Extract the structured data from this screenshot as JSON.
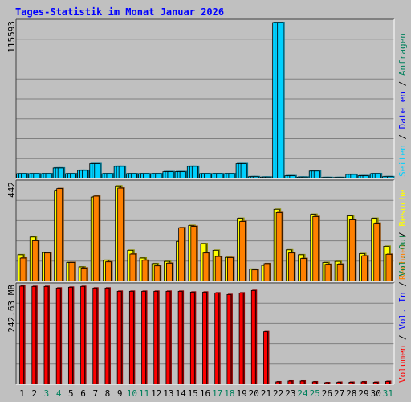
{
  "chart_data": {
    "type": "bar",
    "title": "Tages-Statistik im Monat Januar 2026",
    "categories": [
      "1",
      "2",
      "3",
      "4",
      "5",
      "6",
      "7",
      "8",
      "9",
      "10",
      "11",
      "12",
      "13",
      "14",
      "15",
      "16",
      "17",
      "18",
      "19",
      "20",
      "21",
      "22",
      "23",
      "24",
      "25",
      "26",
      "27",
      "28",
      "29",
      "30",
      "31"
    ],
    "weekend_days": [
      "3",
      "4",
      "10",
      "11",
      "17",
      "18",
      "24",
      "25",
      "31"
    ],
    "colors": {
      "title": "#0000ff",
      "background": "#c0c0c0",
      "plot_background": "#c0c0c0",
      "grid": "#808080",
      "tick_label": "#000000",
      "weekend_label": "#00805c",
      "anfragen": "#00805c",
      "dateien": "#0000ff",
      "seiten": "#00d0ff",
      "besuche": "#ffff00",
      "rechner": "#ff8000",
      "vol_in": "#0000ff",
      "vol_out": "#008040",
      "volumen": "#ff0000"
    },
    "panels": [
      {
        "id": "hits",
        "ymax_label": "115593",
        "ymax": 115593,
        "ylabel": [
          {
            "text": "Seiten",
            "color": "seiten"
          },
          {
            "text": "Dateien",
            "color": "dateien"
          },
          {
            "text": "Anfragen",
            "color": "anfragen"
          }
        ],
        "series": [
          {
            "name": "Anfragen",
            "color": "seiten",
            "values": [
              3550,
              3550,
              3550,
              7800,
              3550,
              6000,
              11000,
              3550,
              9000,
              3550,
              3550,
              3550,
              5000,
              5000,
              9000,
              3550,
              3550,
              3550,
              11000,
              1300,
              1000,
              115593,
              2000,
              1000,
              5500,
              700,
              700,
              3000,
              2000,
              3550,
              1300
            ]
          },
          {
            "name": "Dateien",
            "color": "seiten",
            "values": [
              3550,
              3550,
              3550,
              7800,
              3550,
              6000,
              11000,
              3550,
              9000,
              3550,
              3550,
              3550,
              5000,
              5000,
              9000,
              3550,
              3550,
              3550,
              11000,
              1300,
              1000,
              115593,
              2000,
              1000,
              5500,
              700,
              700,
              3000,
              2000,
              3550,
              1300
            ]
          },
          {
            "name": "Seiten",
            "color": "seiten",
            "values": [
              3550,
              3550,
              3550,
              7800,
              3550,
              6000,
              11000,
              3550,
              9000,
              3550,
              3550,
              3550,
              5000,
              5000,
              9000,
              3550,
              3550,
              3550,
              11000,
              1300,
              1000,
              115593,
              2000,
              1000,
              5500,
              700,
              700,
              3000,
              2000,
              3550,
              1300
            ]
          }
        ]
      },
      {
        "id": "visits",
        "ymax_label": "442",
        "ymax": 442,
        "ylabel": [
          {
            "text": "Rechner",
            "color": "rechner"
          },
          {
            "text": "Besuche",
            "color": "besuche"
          }
        ],
        "series": [
          {
            "name": "Besuche",
            "color": "besuche",
            "values": [
              120,
              200,
              130,
              410,
              85,
              65,
              380,
              95,
              430,
              140,
              105,
              80,
              90,
              180,
              252,
              170,
              140,
              108,
              284,
              55,
              72,
              325,
              142,
              120,
              302,
              85,
              90,
              295,
              125,
              284,
              158
            ]
          },
          {
            "name": "Rechner",
            "color": "rechner",
            "values": [
              105,
              183,
              128,
              418,
              85,
              60,
              384,
              88,
              420,
              123,
              95,
              70,
              82,
              242,
              248,
              128,
              112,
              107,
              270,
              52,
              80,
              310,
              128,
              103,
              292,
              77,
              78,
              277,
              115,
              262,
              122
            ]
          }
        ]
      },
      {
        "id": "volume",
        "ymax_label": "242.63 MB",
        "ymax": 242.63,
        "ylabel": [
          {
            "text": "Volumen",
            "color": "volumen"
          },
          {
            "text": "Vol. In",
            "color": "vol_in"
          },
          {
            "text": "Vol. Out",
            "color": "vol_out"
          }
        ],
        "series": [
          {
            "name": "Volumen",
            "color": "volumen",
            "values": [
              242.63,
              242,
              242,
              238,
              240,
              242,
              238,
              238,
              230,
              230,
              230,
              230,
              230,
              230,
              228,
              228,
              226,
              222,
              226,
              232,
              130,
              6,
              8,
              8,
              6,
              4,
              5,
              5,
              6,
              5,
              7
            ]
          }
        ]
      }
    ]
  }
}
